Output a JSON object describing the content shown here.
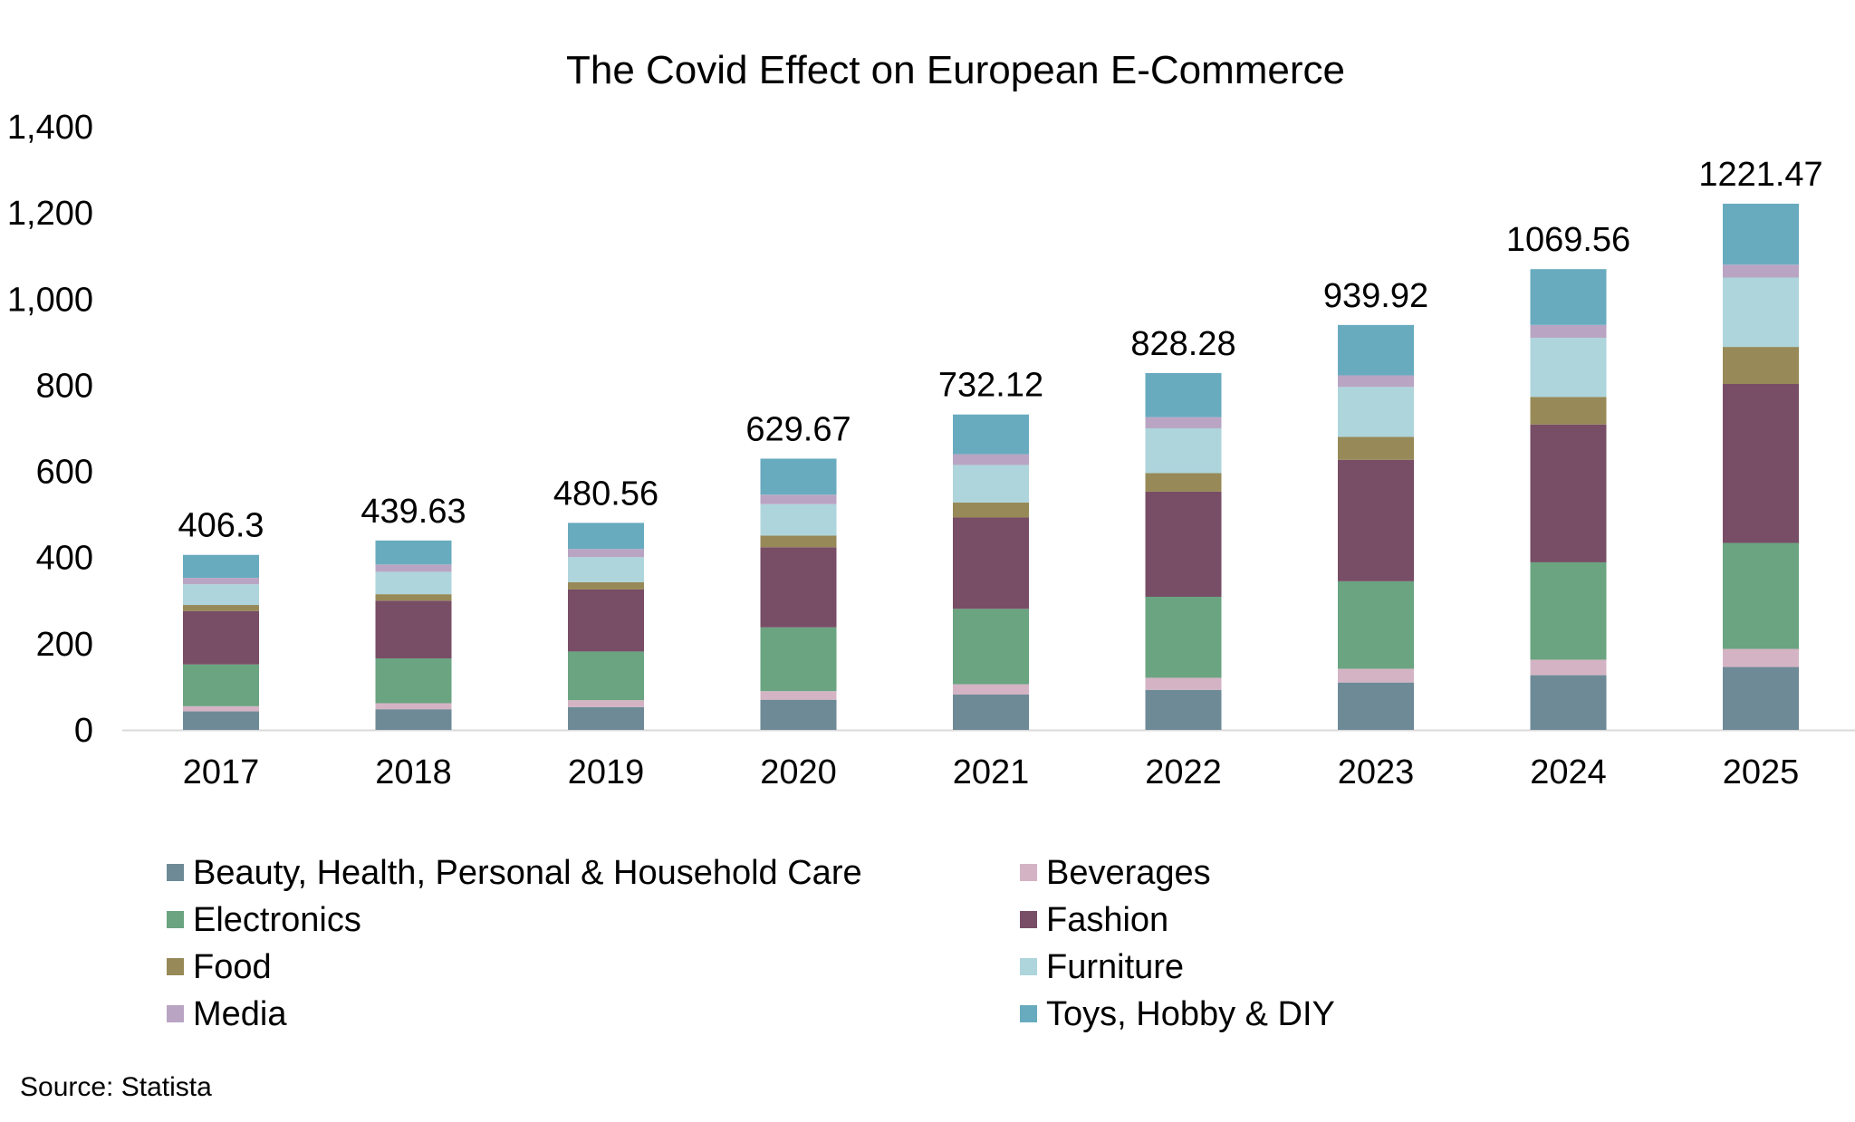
{
  "chart_data": {
    "type": "bar",
    "stacked": true,
    "title": "The Covid Effect on European E-Commerce",
    "xlabel": "",
    "ylabel": "",
    "ylim": [
      0,
      1400
    ],
    "yticks": [
      0,
      200,
      400,
      600,
      800,
      1000,
      1200,
      1400
    ],
    "ytick_labels": [
      "0",
      "200",
      "400",
      "600",
      "800",
      "1,000",
      "1,200",
      "1,400"
    ],
    "categories": [
      "2017",
      "2018",
      "2019",
      "2020",
      "2021",
      "2022",
      "2023",
      "2024",
      "2025"
    ],
    "totals": [
      "406.3",
      "439.63",
      "480.56",
      "629.67",
      "732.12",
      "828.28",
      "939.92",
      "1069.56",
      "1221.47"
    ],
    "series": [
      {
        "name": "Beauty, Health, Personal & Household Care",
        "color": "#6e8a97",
        "values": [
          43,
          48,
          53,
          70,
          82,
          93,
          110,
          127,
          146
        ]
      },
      {
        "name": "Beverages",
        "color": "#d4b4c4",
        "values": [
          12,
          14,
          16,
          20,
          24,
          28,
          32,
          36,
          42
        ]
      },
      {
        "name": "Electronics",
        "color": "#6aa481",
        "values": [
          97,
          104,
          113,
          148,
          175,
          188,
          203,
          226,
          246
        ]
      },
      {
        "name": "Fashion",
        "color": "#784d66",
        "values": [
          124,
          134,
          144,
          186,
          212,
          244,
          282,
          320,
          369
        ]
      },
      {
        "name": "Food",
        "color": "#978a58",
        "values": [
          14,
          15,
          17,
          27,
          35,
          43,
          53,
          64,
          86
        ]
      },
      {
        "name": "Furniture",
        "color": "#aed5dc",
        "values": [
          48,
          52,
          58,
          73,
          87,
          104,
          116,
          137,
          161
        ]
      },
      {
        "name": "Media",
        "color": "#b9a5c3",
        "values": [
          15,
          17,
          19,
          22,
          25,
          26,
          27,
          30,
          30
        ]
      },
      {
        "name": "Toys, Hobby & DIY",
        "color": "#68abbf",
        "values": [
          53.3,
          55.63,
          60.56,
          83.67,
          92.12,
          102.28,
          116.92,
          129.56,
          141.47
        ]
      }
    ],
    "legend_position": "bottom",
    "grid": false
  },
  "source": "Source: Statista"
}
